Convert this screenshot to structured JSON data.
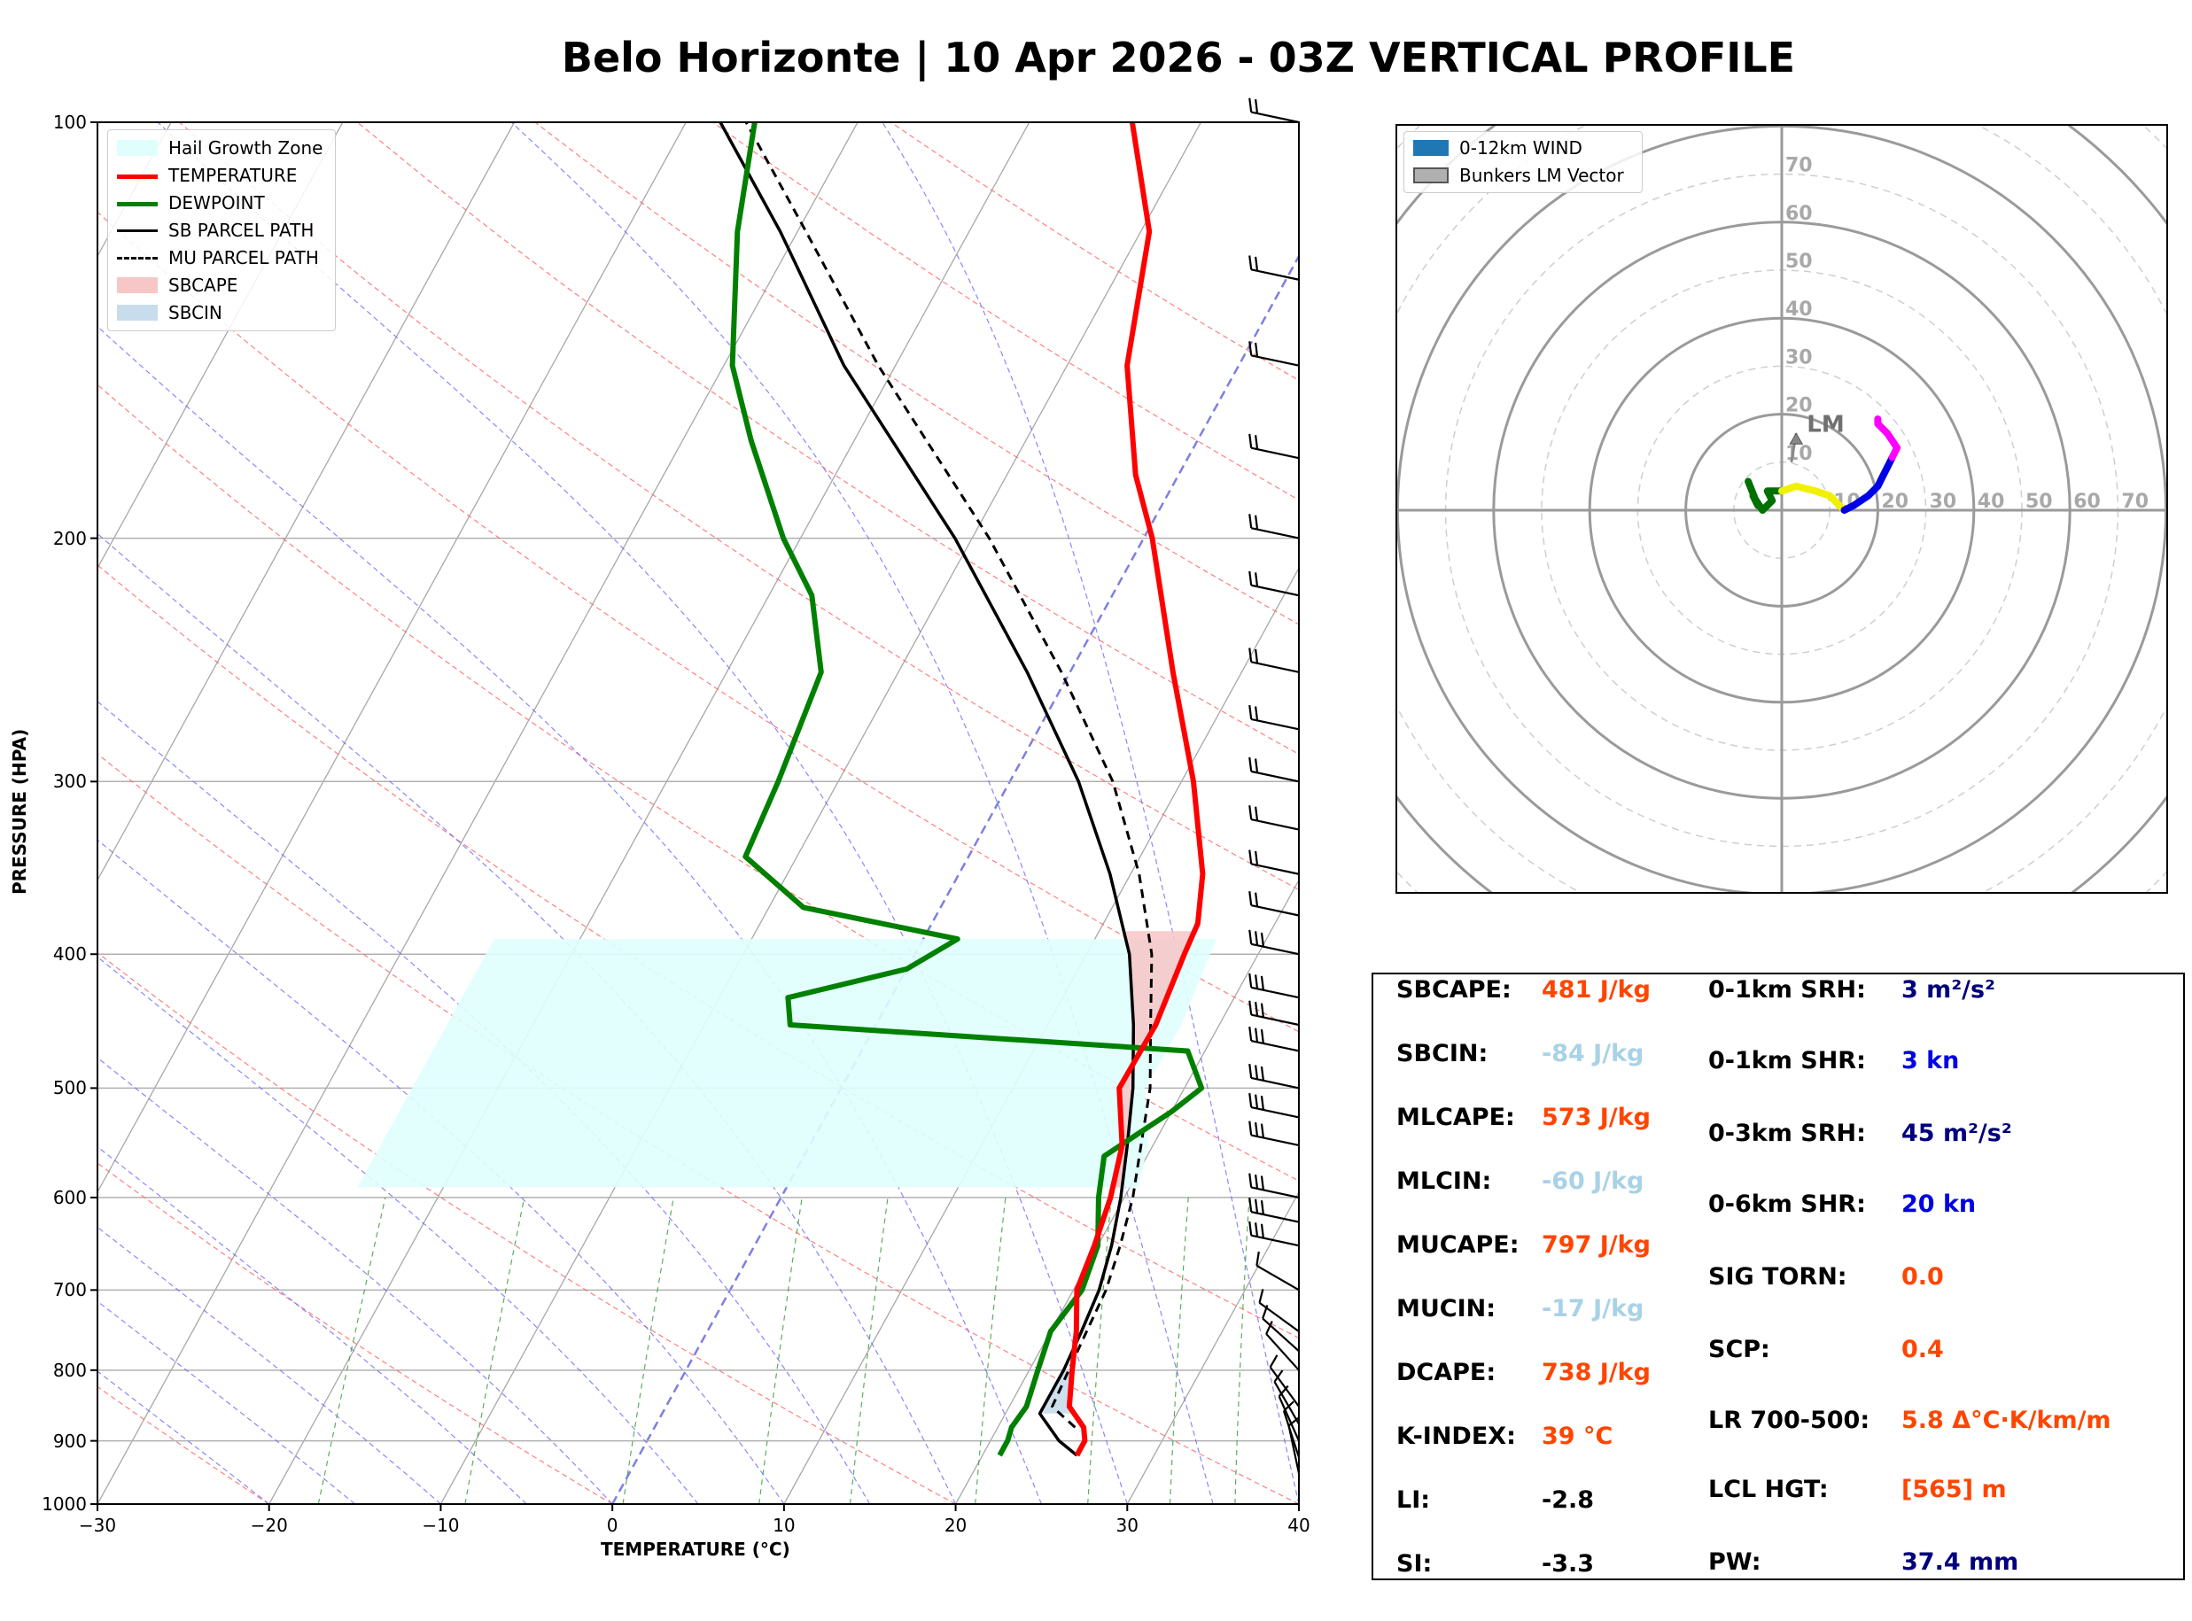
{
  "title": "Belo Horizonte | 10 Apr 2026 - 03Z VERTICAL PROFILE",
  "colors": {
    "temperature": "#ff0000",
    "dewpoint": "#008000",
    "sb_parcel": "#000000",
    "mu_parcel": "#000000",
    "sbcape_fill": "#f7c6c6",
    "sbcin_fill": "#c9dcec",
    "hail_zone": "#dffffd",
    "dry_adiabat": "#ff6060",
    "moist_adiabat": "#6060ff",
    "mixing_ratio": "#40a040",
    "isotherm_zero": "#7f7fe0"
  },
  "chart_data": [
    {
      "type": "line",
      "name": "skew-t",
      "xlabel": "TEMPERATURE (°C)",
      "ylabel": "PRESSURE (HPA)",
      "xlim": [
        -30,
        40
      ],
      "ylim": [
        1000,
        100
      ],
      "x_ticks": [
        -30,
        -20,
        -10,
        0,
        10,
        20,
        30,
        40
      ],
      "x_tick_labels": [
        "−30",
        "−20",
        "−10",
        "0",
        "10",
        "20",
        "30",
        "40"
      ],
      "y_ticks": [
        100,
        200,
        300,
        400,
        500,
        600,
        700,
        800,
        900,
        1000
      ],
      "y_tick_labels": [
        "100",
        "200",
        "300",
        "400",
        "500",
        "600",
        "700",
        "800",
        "900",
        "1000"
      ],
      "legend": [
        "Hail Growth Zone",
        "TEMPERATURE",
        "DEWPOINT",
        "SB PARCEL PATH",
        "MU PARCEL PATH",
        "SBCAPE",
        "SBCIN"
      ],
      "series": [
        {
          "name": "TEMPERATURE",
          "points": [
            [
              922,
              25.5
            ],
            [
              900,
              25.5
            ],
            [
              880,
              25.0
            ],
            [
              850,
              23.5
            ],
            [
              800,
              22.5
            ],
            [
              750,
              21.5
            ],
            [
              700,
              20.2
            ],
            [
              650,
              19.8
            ],
            [
              600,
              19.2
            ],
            [
              550,
              18.2
            ],
            [
              500,
              16.2
            ],
            [
              450,
              16.3
            ],
            [
              400,
              15.7
            ],
            [
              380,
              15.5
            ],
            [
              350,
              14.2
            ],
            [
              300,
              10.7
            ],
            [
              250,
              6.0
            ],
            [
              200,
              0.5
            ],
            [
              180,
              -2.5
            ],
            [
              150,
              -6.5
            ],
            [
              120,
              -9.5
            ],
            [
              100,
              -14.0
            ]
          ]
        },
        {
          "name": "DEWPOINT",
          "points": [
            [
              922,
              21.0
            ],
            [
              900,
              21.0
            ],
            [
              880,
              20.8
            ],
            [
              850,
              21.0
            ],
            [
              800,
              20.5
            ],
            [
              750,
              20.0
            ],
            [
              700,
              20.5
            ],
            [
              650,
              20.0
            ],
            [
              600,
              18.5
            ],
            [
              560,
              17.5
            ],
            [
              520,
              20.0
            ],
            [
              500,
              21.0
            ],
            [
              470,
              19.0
            ],
            [
              450,
              -5.0
            ],
            [
              430,
              -6.0
            ],
            [
              410,
              0.0
            ],
            [
              390,
              2.0
            ],
            [
              370,
              -8.0
            ],
            [
              340,
              -13.0
            ],
            [
              300,
              -13.5
            ],
            [
              250,
              -14.5
            ],
            [
              220,
              -17.5
            ],
            [
              200,
              -21.0
            ],
            [
              170,
              -26.0
            ],
            [
              150,
              -29.5
            ],
            [
              120,
              -33.5
            ],
            [
              100,
              -36.0
            ]
          ]
        },
        {
          "name": "SB PARCEL PATH",
          "points": [
            [
              922,
              25.5
            ],
            [
              900,
              24.0
            ],
            [
              860,
              22.0
            ],
            [
              800,
              22.0
            ],
            [
              750,
              21.8
            ],
            [
              700,
              21.5
            ],
            [
              650,
              20.8
            ],
            [
              600,
              19.8
            ],
            [
              550,
              18.5
            ],
            [
              500,
              17.0
            ],
            [
              450,
              15.0
            ],
            [
              400,
              12.5
            ],
            [
              350,
              8.8
            ],
            [
              300,
              4.0
            ],
            [
              250,
              -2.5
            ],
            [
              200,
              -11.0
            ],
            [
              150,
              -23.0
            ],
            [
              120,
              -31.0
            ],
            [
              100,
              -38.0
            ]
          ]
        },
        {
          "name": "MU PARCEL PATH",
          "points": [
            [
              880,
              24.5
            ],
            [
              850,
              22.5
            ],
            [
              800,
              22.3
            ],
            [
              750,
              22.1
            ],
            [
              700,
              21.9
            ],
            [
              650,
              21.3
            ],
            [
              600,
              20.5
            ],
            [
              550,
              19.3
            ],
            [
              500,
              18.0
            ],
            [
              450,
              16.0
            ],
            [
              400,
              13.8
            ],
            [
              350,
              10.5
            ],
            [
              300,
              6.0
            ],
            [
              250,
              -0.5
            ],
            [
              200,
              -9.0
            ],
            [
              150,
              -21.0
            ],
            [
              120,
              -29.5
            ],
            [
              100,
              -36.5
            ]
          ]
        }
      ],
      "hail_growth_zone_hpa": [
        390,
        590
      ],
      "wind_barbs_hpa": [
        100,
        130,
        150,
        175,
        200,
        220,
        250,
        275,
        300,
        325,
        350,
        375,
        400,
        430,
        450,
        470,
        500,
        525,
        550,
        600,
        625,
        650,
        700,
        750,
        775,
        800,
        850,
        875,
        900,
        925,
        950
      ]
    },
    {
      "type": "scatter",
      "name": "hodograph",
      "legend": [
        "0-12km WIND",
        "Bunkers LM Vector"
      ],
      "ring_labels": [
        "10",
        "20",
        "30",
        "40",
        "50",
        "60",
        "70"
      ],
      "annotation": "LM",
      "bunkers_lm_vector": [
        3,
        16
      ],
      "segments": [
        {
          "color": "#007000",
          "points": [
            [
              -7,
              6
            ],
            [
              -5,
              1
            ],
            [
              -6,
              3
            ],
            [
              -4,
              0
            ],
            [
              -2,
              2
            ],
            [
              -3,
              4
            ],
            [
              0,
              4
            ]
          ]
        },
        {
          "color": "#f0f000",
          "points": [
            [
              0,
              4
            ],
            [
              3,
              5
            ],
            [
              7,
              4
            ],
            [
              10,
              3
            ],
            [
              12,
              1
            ],
            [
              13,
              0
            ]
          ]
        },
        {
          "color": "#0000e6",
          "points": [
            [
              13,
              0
            ],
            [
              15,
              1
            ],
            [
              18,
              3
            ],
            [
              20,
              5
            ],
            [
              21,
              7
            ],
            [
              23,
              11
            ]
          ]
        },
        {
          "color": "#ff00ff",
          "points": [
            [
              23,
              11
            ],
            [
              24,
              13
            ],
            [
              22,
              16
            ],
            [
              20,
              18
            ],
            [
              20,
              19
            ]
          ]
        }
      ]
    }
  ],
  "indices": {
    "left": [
      {
        "label": "SBCAPE:",
        "value": "481 J/kg",
        "color": "#ff4500"
      },
      {
        "label": "SBCIN:",
        "value": "-84 J/kg",
        "color": "#a8d2e6"
      },
      {
        "label": "MLCAPE:",
        "value": "573 J/kg",
        "color": "#ff4500"
      },
      {
        "label": "MLCIN:",
        "value": "-60 J/kg",
        "color": "#a8d2e6"
      },
      {
        "label": "MUCAPE:",
        "value": "797 J/kg",
        "color": "#ff4500"
      },
      {
        "label": "MUCIN:",
        "value": "-17 J/kg",
        "color": "#a8d2e6"
      },
      {
        "label": "DCAPE:",
        "value": "738 J/kg",
        "color": "#ff4500"
      },
      {
        "label": "K-INDEX:",
        "value": "39 °C",
        "color": "#ff4500"
      },
      {
        "label": "LI:",
        "value": "-2.8",
        "color": "#000000"
      },
      {
        "label": "SI:",
        "value": "-3.3",
        "color": "#000000"
      }
    ],
    "right": [
      {
        "label": "0-1km SRH:",
        "value": "3 m²/s²",
        "color": "#00007d"
      },
      {
        "label": "0-1km SHR:",
        "value": "3 kn",
        "color": "#0000e6"
      },
      {
        "label": "0-3km SRH:",
        "value": "45 m²/s²",
        "color": "#00007d"
      },
      {
        "label": "0-6km SHR:",
        "value": "20 kn",
        "color": "#0000e6"
      },
      {
        "label": "SIG TORN:",
        "value": "0.0",
        "color": "#ff4500"
      },
      {
        "label": "SCP:",
        "value": "0.4",
        "color": "#ff4500"
      },
      {
        "label": "LR 700-500:",
        "value": "5.8 Δ°C·K/km/m",
        "color": "#ff4500"
      },
      {
        "label": "LCL HGT:",
        "value": "[565] m",
        "color": "#ff4500"
      },
      {
        "label": "PW:",
        "value": "37.4 mm",
        "color": "#00007d"
      }
    ]
  }
}
